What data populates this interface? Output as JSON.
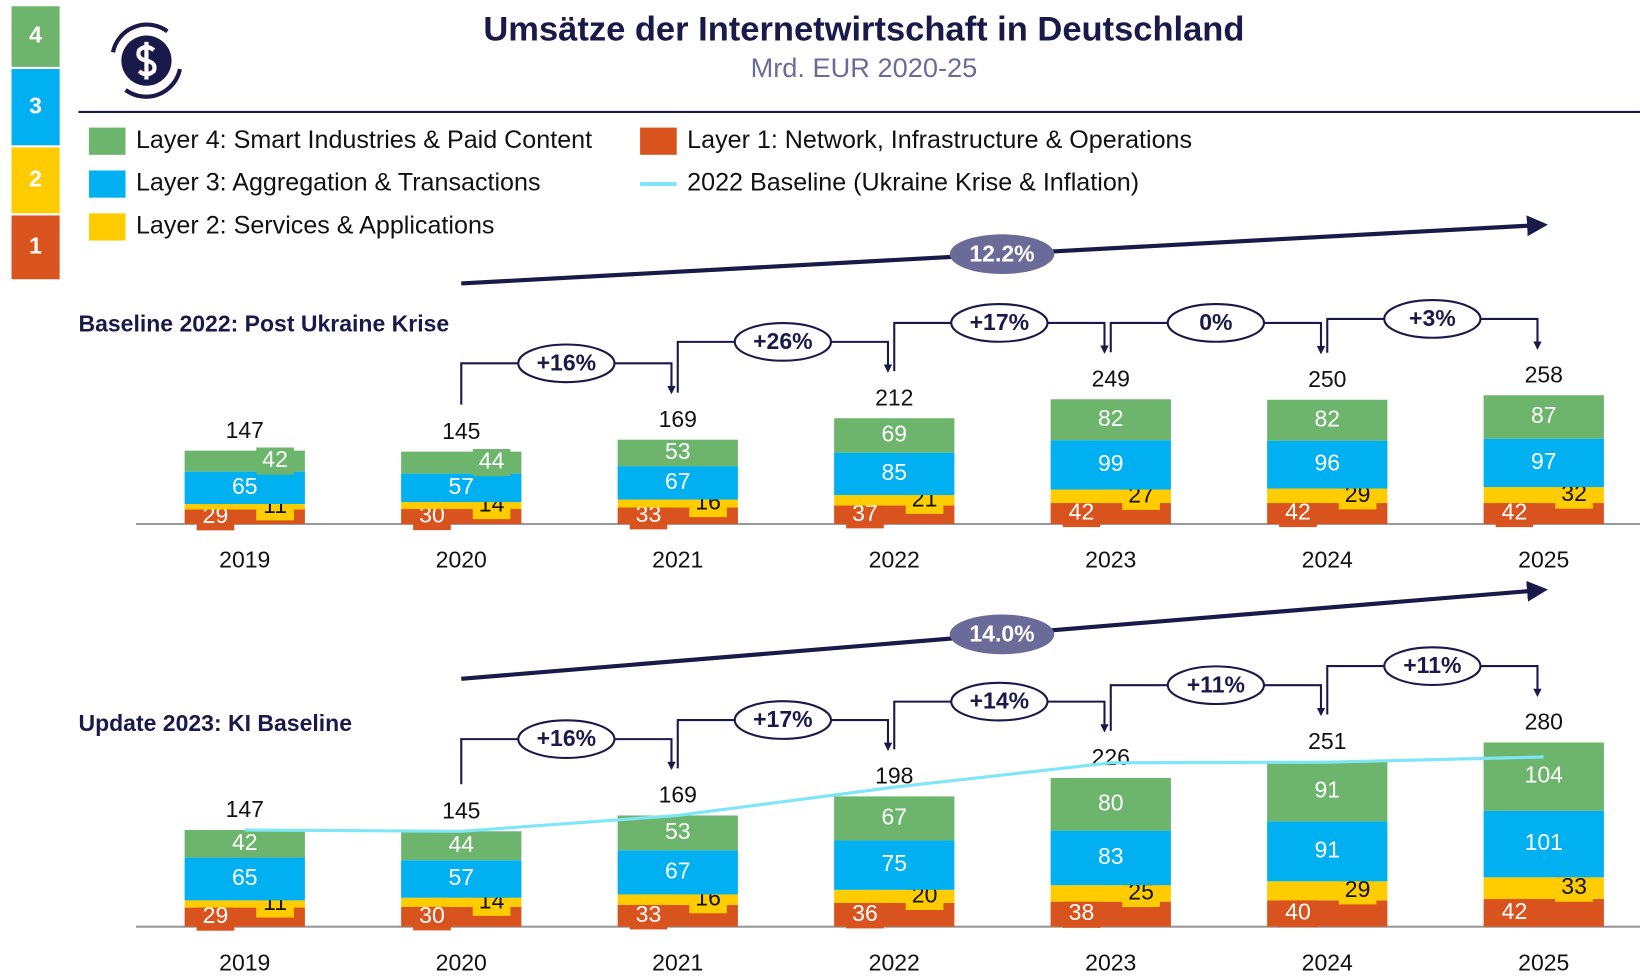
{
  "header": {
    "title": "Umsätze der Internetwirtschaft in Deutschland",
    "subtitle": "Mrd. EUR 2020-25"
  },
  "layer_badges": [
    "4",
    "3",
    "2",
    "1"
  ],
  "chart_data": [
    {
      "type": "bar",
      "stacked": true,
      "title": "Baseline 2022: Post Ukraine Krise",
      "categories": [
        "2019",
        "2020",
        "2021",
        "2022",
        "2023",
        "2024",
        "2025"
      ],
      "series": [
        {
          "name": "Layer 1: Network, Infrastructure & Operations",
          "color": "#d9531e",
          "values": [
            29,
            30,
            33,
            37,
            42,
            42,
            42
          ]
        },
        {
          "name": "Layer 2: Services & Applications",
          "color": "#ffcc00",
          "values": [
            11,
            14,
            16,
            21,
            27,
            29,
            32
          ]
        },
        {
          "name": "Layer 3: Aggregation & Transactions",
          "color": "#00b0f0",
          "values": [
            65,
            57,
            67,
            85,
            99,
            96,
            97
          ]
        },
        {
          "name": "Layer 4: Smart Industries & Paid Content",
          "color": "#6db56d",
          "values": [
            42,
            44,
            53,
            69,
            82,
            82,
            87
          ]
        }
      ],
      "totals": [
        147,
        145,
        169,
        212,
        249,
        250,
        258
      ],
      "growth_labels": [
        "+16%",
        "+26%",
        "+17%",
        "0%",
        "+3%"
      ],
      "cagr_label": "12.2%"
    },
    {
      "type": "bar",
      "stacked": true,
      "title": "Update 2023: KI Baseline",
      "categories": [
        "2019",
        "2020",
        "2021",
        "2022",
        "2023",
        "2024",
        "2025"
      ],
      "series": [
        {
          "color": "#d9531e",
          "values": [
            29,
            30,
            33,
            36,
            38,
            40,
            42
          ]
        },
        {
          "color": "#ffcc00",
          "values": [
            11,
            14,
            16,
            20,
            25,
            29,
            33
          ]
        },
        {
          "color": "#00b0f0",
          "values": [
            65,
            57,
            67,
            75,
            83,
            91,
            101
          ]
        },
        {
          "color": "#6db56d",
          "values": [
            42,
            44,
            53,
            67,
            80,
            91,
            104
          ]
        },
        {
          "type": "line",
          "name": "2022 Baseline (Ukraine Krise & Inflation)",
          "color": "#7fe6f8",
          "values": [
            147,
            145,
            169,
            212,
            249,
            250,
            258
          ]
        }
      ],
      "totals": [
        147,
        145,
        169,
        198,
        226,
        251,
        280
      ],
      "growth_labels": [
        "+16%",
        "+17%",
        "+14%",
        "+11%",
        "+11%"
      ],
      "cagr_label": "14.0%"
    }
  ]
}
